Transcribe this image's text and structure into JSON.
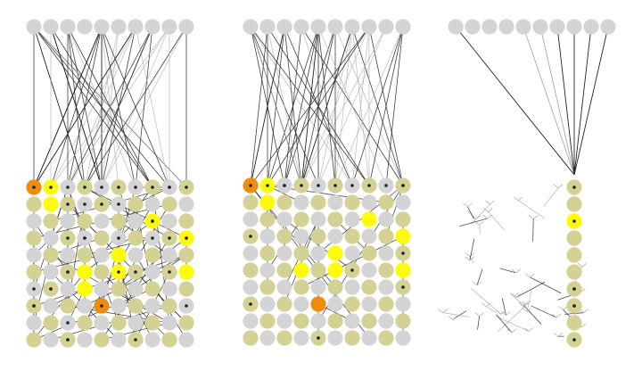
{
  "figure": {
    "description_free": true,
    "panel_count": 3,
    "colors": {
      "background": "#ffffff",
      "node_gray": "#d4d4d4",
      "node_olive": "#d3d294",
      "node_yellow": "#fdfa0a",
      "node_orange": "#f08c0c",
      "edge": "#222222",
      "edge_light": "#aaaaaa"
    }
  },
  "panels": [
    {
      "name": "panel-1",
      "top_row_count": 10,
      "grid_cols": 10,
      "grid_rows": 10,
      "highlight_yellow": [
        [
          0,
          1
        ],
        [
          1,
          1
        ],
        [
          2,
          7
        ],
        [
          3,
          9
        ],
        [
          4,
          5
        ],
        [
          5,
          3
        ],
        [
          5,
          5
        ],
        [
          5,
          9
        ],
        [
          6,
          3
        ]
      ],
      "highlight_orange": [
        [
          0,
          0
        ],
        [
          7,
          4
        ]
      ]
    },
    {
      "name": "panel-2",
      "top_row_count": 10,
      "grid_cols": 10,
      "grid_rows": 10,
      "highlight_yellow": [
        [
          0,
          1
        ],
        [
          1,
          1
        ],
        [
          2,
          7
        ],
        [
          3,
          9
        ],
        [
          4,
          5
        ],
        [
          5,
          3
        ],
        [
          5,
          5
        ],
        [
          5,
          9
        ]
      ],
      "highlight_orange": [
        [
          0,
          0
        ],
        [
          7,
          4
        ]
      ]
    },
    {
      "name": "panel-3",
      "top_row_count": 10,
      "grid_cols": 1,
      "grid_rows": 10,
      "highlight_yellow": [
        [
          2,
          0
        ]
      ],
      "highlight_orange": []
    }
  ]
}
